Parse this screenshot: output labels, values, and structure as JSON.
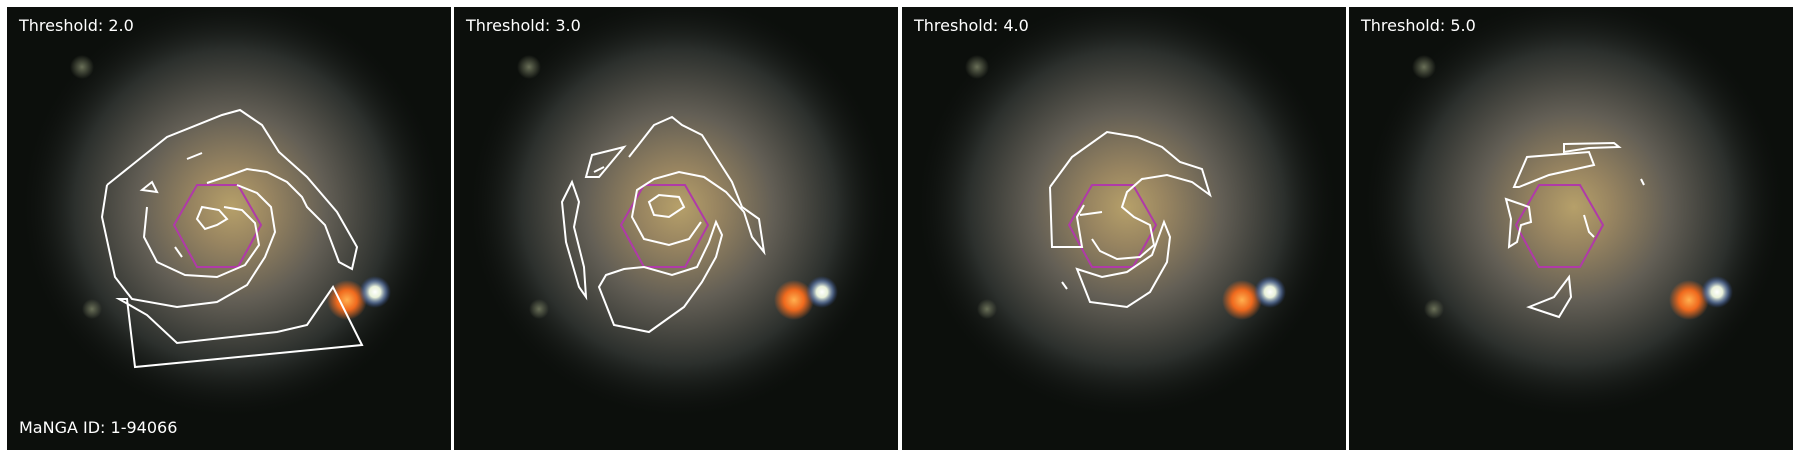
{
  "panels": [
    {
      "label": "Threshold: 2.0"
    },
    {
      "label": "Threshold: 3.0"
    },
    {
      "label": "Threshold: 4.0"
    },
    {
      "label": "Threshold: 5.0"
    }
  ],
  "id_label": "MaNGA ID: 1-94066",
  "colors": {
    "contour": "#ffffff",
    "hexagon": "#b03aa8",
    "background": "#0c0f0c"
  }
}
